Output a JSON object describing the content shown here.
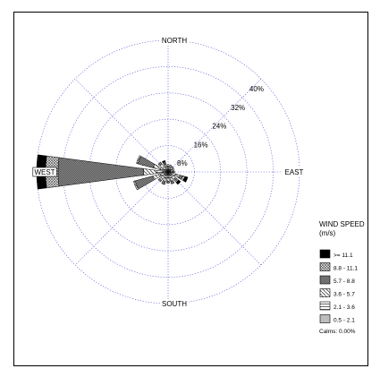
{
  "chart_data": {
    "type": "wind-rose",
    "directions": {
      "north": "NORTH",
      "east": "EAST",
      "south": "SOUTH",
      "west": "WEST"
    },
    "ring_labels": [
      "8%",
      "16%",
      "24%",
      "32%",
      "40%"
    ],
    "ring_values": [
      8,
      16,
      24,
      32,
      40
    ],
    "r_max": 40,
    "legend": {
      "title_line1": "WIND SPEED",
      "title_line2": "(m/s)",
      "entries": [
        {
          "label": ">= 11.1",
          "pattern": "solid-black"
        },
        {
          "label": "8.8 - 11.1",
          "pattern": "crosshatch"
        },
        {
          "label": "5.7 - 8.8",
          "pattern": "dark-gray"
        },
        {
          "label": "3.6 - 5.7",
          "pattern": "diagonal"
        },
        {
          "label": "2.1 - 3.6",
          "pattern": "horizontal"
        },
        {
          "label": "0.5 - 2.1",
          "pattern": "light-gray"
        }
      ],
      "calms": "Calms: 0.00%"
    },
    "bin_order": [
      "0.5 - 2.1",
      "2.1 - 3.6",
      "3.6 - 5.7",
      "5.7 - 8.8",
      "8.8 - 11.1",
      ">= 11.1"
    ],
    "sectors": [
      {
        "direction": 0,
        "values": [
          0.9,
          0.8,
          0.6,
          0,
          0,
          0
        ]
      },
      {
        "direction": 22.5,
        "values": [
          0.9,
          0.8,
          0.5,
          0,
          0,
          0
        ]
      },
      {
        "direction": 45,
        "values": [
          0.9,
          0.7,
          0.5,
          0,
          0,
          0
        ]
      },
      {
        "direction": 67.5,
        "values": [
          0.9,
          0.7,
          0.4,
          0,
          0,
          0
        ]
      },
      {
        "direction": 90,
        "values": [
          0.8,
          0.7,
          0.5,
          0,
          0,
          0
        ]
      },
      {
        "direction": 112.5,
        "values": [
          1.2,
          1.2,
          1.3,
          0.9,
          0.7,
          0.9
        ]
      },
      {
        "direction": 135,
        "values": [
          1.0,
          1.0,
          0.8,
          0.6,
          0.6,
          0.8
        ]
      },
      {
        "direction": 157.5,
        "values": [
          1.0,
          1.0,
          1.0,
          0.8,
          0,
          0
        ]
      },
      {
        "direction": 180,
        "values": [
          1.0,
          0.9,
          0.9,
          0.6,
          0,
          0
        ]
      },
      {
        "direction": 202.5,
        "values": [
          1.0,
          1.0,
          1.2,
          0.8,
          0,
          0
        ]
      },
      {
        "direction": 225,
        "values": [
          1.0,
          1.0,
          1.2,
          0.6,
          0,
          0
        ]
      },
      {
        "direction": 247.5,
        "values": [
          1.2,
          1.3,
          2.4,
          5.5,
          0.5,
          0
        ]
      },
      {
        "direction": 270,
        "values": [
          1.5,
          2.0,
          4.0,
          26.0,
          3.8,
          2.7
        ]
      },
      {
        "direction": 292.5,
        "values": [
          1.2,
          1.3,
          2.2,
          4.8,
          0.5,
          0
        ]
      },
      {
        "direction": 315,
        "values": [
          1.0,
          1.0,
          1.0,
          0.8,
          0,
          0
        ]
      },
      {
        "direction": 337.5,
        "values": [
          0.9,
          0.9,
          0.5,
          0.5,
          0.4,
          0.4
        ]
      }
    ]
  }
}
